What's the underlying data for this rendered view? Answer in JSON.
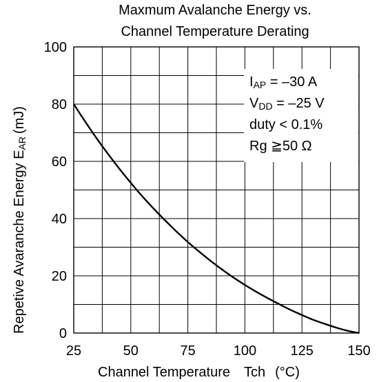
{
  "chart_data": {
    "type": "line",
    "title_lines": [
      "Maxmum Avalanche Energy vs.",
      "Channel Temperature Derating"
    ],
    "xlabel_main": "Channel Temperature",
    "xlabel_symbol": "Tch",
    "xlabel_unit": "(°C)",
    "ylabel_main": "Repetive Avaranche Energy E",
    "ylabel_sub": "AR",
    "ylabel_unit": "(mJ)",
    "xlim": [
      25,
      150
    ],
    "ylim": [
      0,
      100
    ],
    "x_ticks": [
      25,
      50,
      75,
      100,
      125,
      150
    ],
    "y_ticks": [
      0,
      20,
      40,
      60,
      80,
      100
    ],
    "x_minor_grid": [
      37.5,
      62.5,
      87.5,
      112.5,
      137.5
    ],
    "y_minor_grid": [
      10,
      30,
      50,
      70,
      90
    ],
    "grid": true,
    "series": [
      {
        "x": [
          25,
          30,
          35,
          40,
          45,
          50,
          55,
          60,
          65,
          70,
          75,
          80,
          85,
          90,
          95,
          100,
          105,
          110,
          115,
          120,
          125,
          130,
          135,
          140,
          145,
          150
        ],
        "y": [
          80,
          73.9,
          68.1,
          62.6,
          57.4,
          52.5,
          47.8,
          43.5,
          39.4,
          35.5,
          31.8,
          28.4,
          25.2,
          22.2,
          19.4,
          16.8,
          14.4,
          12.2,
          10.1,
          8.1,
          6.3,
          4.6,
          3.2,
          1.9,
          0.8,
          0
        ]
      }
    ],
    "annotation": {
      "iap_main": "I",
      "iap_sub": "AP",
      "iap_value": " = –30 A",
      "vdd_main": "V",
      "vdd_sub": "DD",
      "vdd_value": " = –25 V",
      "duty": "duty < 0.1%",
      "rg": "Rg ≧50 Ω"
    },
    "colors": {
      "line": "#000000",
      "grid": "#000000",
      "background": "#ffffff"
    }
  }
}
